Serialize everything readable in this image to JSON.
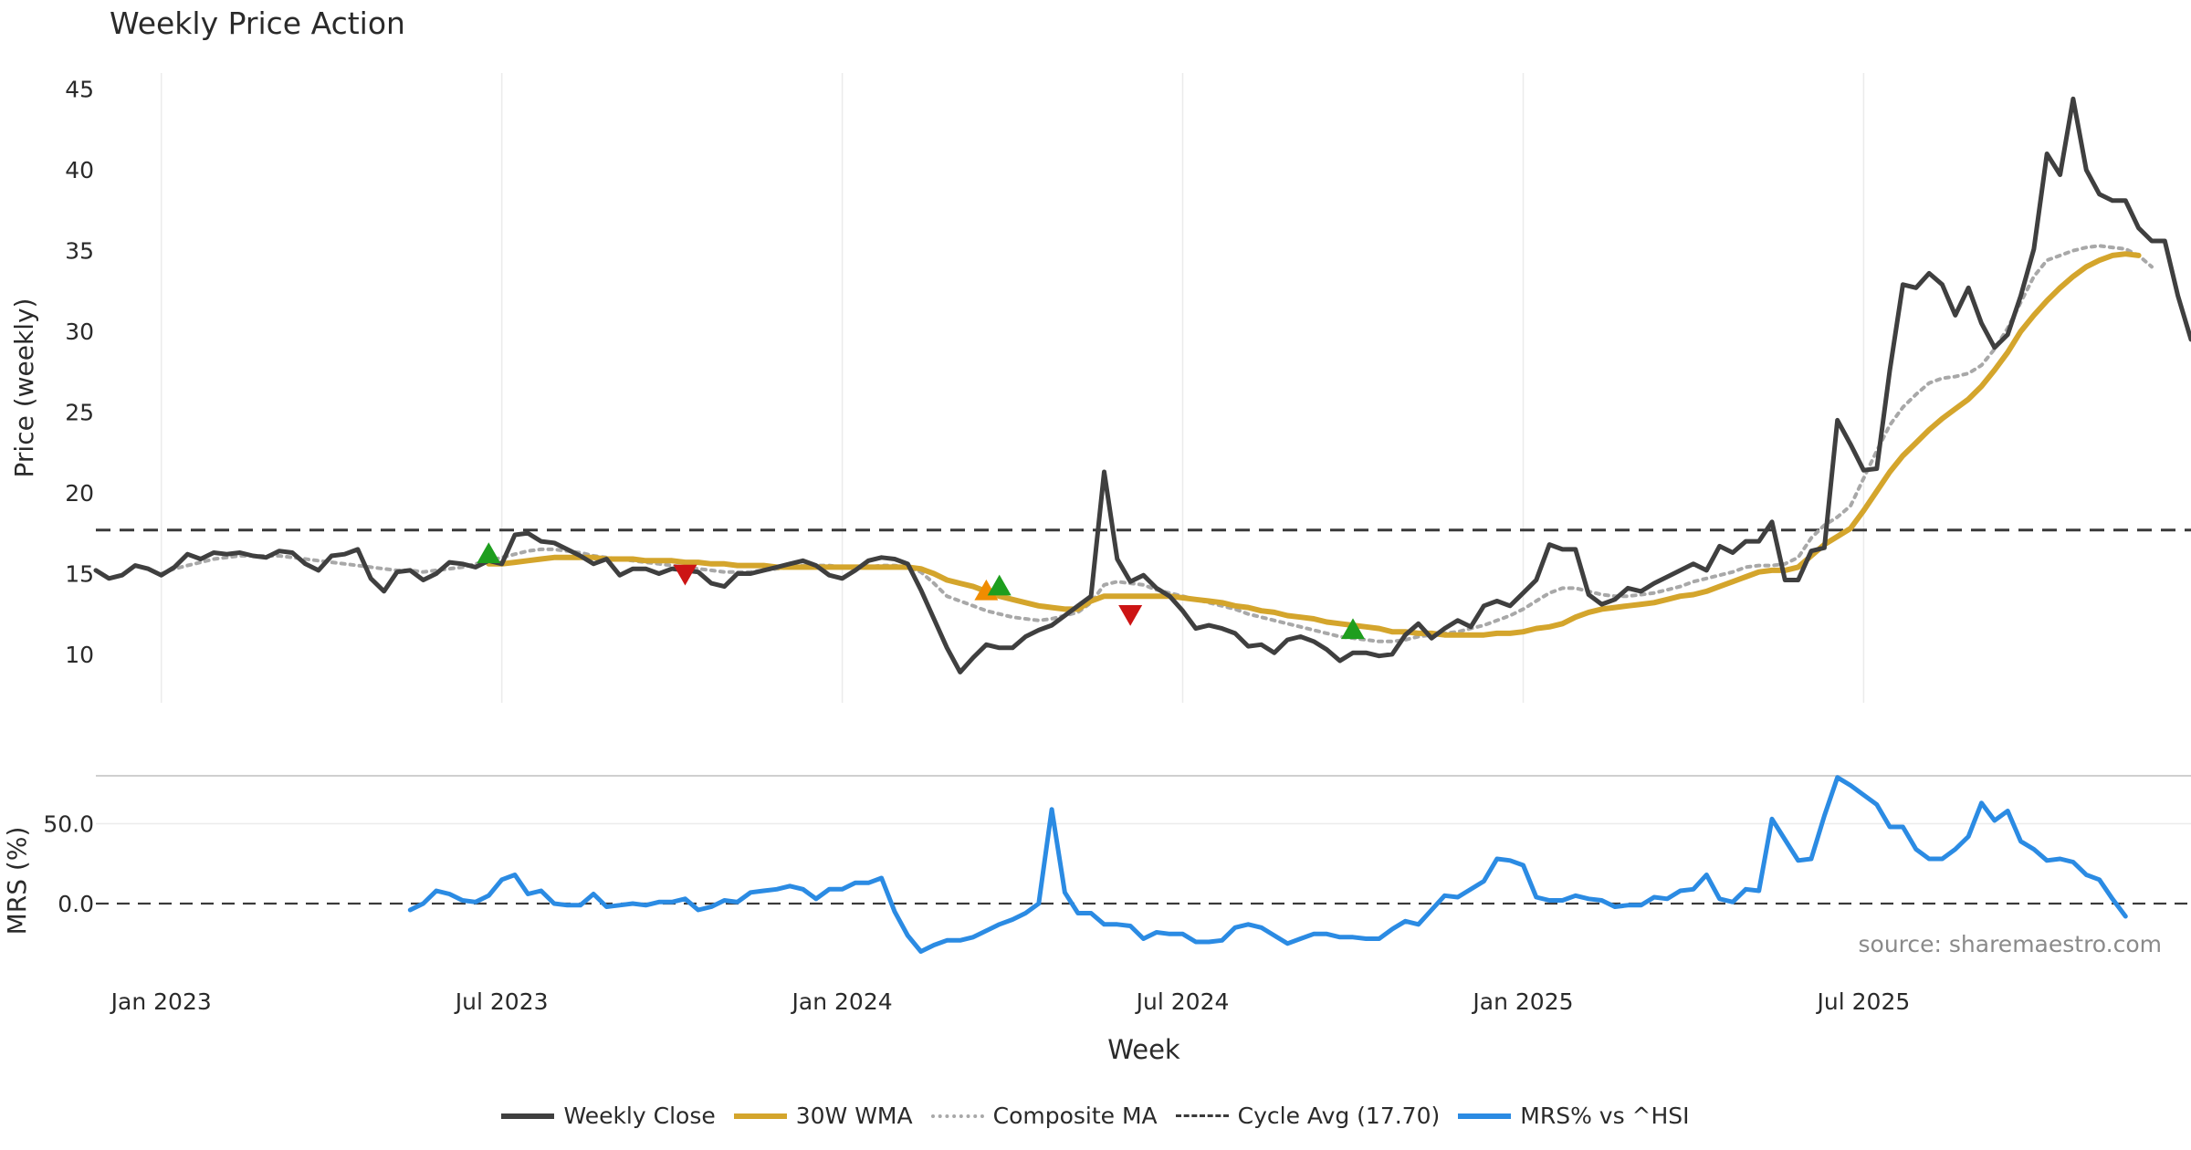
{
  "colors": {
    "close": "#3f3f3f",
    "wma": "#d4a52c",
    "composite": "#a8a8a8",
    "cycle": "#3a3a3a",
    "mrs": "#2b8be3",
    "buy": "#1e9e1e",
    "sell": "#cc1414",
    "warn": "#f08c00"
  },
  "chart_data": {
    "type": "line",
    "title": "Weekly Price Action",
    "xlabel": "Week",
    "x_ticks": [
      "Jan 2023",
      "Jul 2023",
      "Jan 2024",
      "Jul 2024",
      "Jan 2025",
      "Jul 2025"
    ],
    "source": "source: sharemaestro.com",
    "price_panel": {
      "ylabel": "Price (weekly)",
      "ylim": [
        7,
        46
      ],
      "yticks": [
        "10",
        "15",
        "20",
        "25",
        "30",
        "35",
        "40",
        "45"
      ],
      "cycle_avg": 17.7,
      "series": [
        {
          "name": "Weekly Close",
          "values": [
            15.2,
            14.7,
            14.9,
            15.5,
            15.3,
            14.9,
            15.4,
            16.2,
            15.9,
            16.3,
            16.2,
            16.3,
            16.1,
            16.0,
            16.4,
            16.3,
            15.6,
            15.2,
            16.1,
            16.2,
            16.5,
            14.7,
            13.9,
            15.1,
            15.2,
            14.6,
            15.0,
            15.7,
            15.6,
            15.4,
            15.8,
            15.6,
            17.4,
            17.5,
            17.0,
            16.9,
            16.5,
            16.1,
            15.6,
            15.9,
            14.9,
            15.3,
            15.3,
            15.0,
            15.3,
            15.2,
            15.1,
            14.4,
            14.2,
            15.0,
            15.0,
            15.2,
            15.4,
            15.6,
            15.8,
            15.5,
            14.9,
            14.7,
            15.2,
            15.8,
            16.0,
            15.9,
            15.6,
            14.0,
            12.2,
            10.4,
            8.9,
            9.8,
            10.6,
            10.4,
            10.4,
            11.1,
            11.5,
            11.8,
            12.4,
            13.0,
            13.6,
            21.3,
            15.9,
            14.5,
            14.9,
            14.1,
            13.6,
            12.7,
            11.6,
            11.8,
            11.6,
            11.3,
            10.5,
            10.6,
            10.1,
            10.9,
            11.1,
            10.8,
            10.3,
            9.6,
            10.1,
            10.1,
            9.9,
            10.0,
            11.2,
            11.9,
            11.0,
            11.6,
            12.1,
            11.7,
            13.0,
            13.3,
            13.0,
            13.8,
            14.6,
            16.8,
            16.5,
            16.5,
            13.7,
            13.1,
            13.4,
            14.1,
            13.9,
            14.4,
            14.8,
            15.2,
            15.6,
            15.2,
            16.7,
            16.3,
            17.0,
            17.0,
            18.2,
            14.6,
            14.6,
            16.4,
            16.6,
            24.5,
            23.0,
            21.4,
            21.5,
            27.6,
            32.9,
            32.7,
            33.6,
            32.9,
            31.0,
            32.7,
            30.5,
            29.0,
            29.8,
            32.2,
            35.1,
            41.0,
            39.7,
            44.4,
            40.0,
            38.5,
            38.1,
            38.1,
            36.4,
            35.6,
            35.6,
            32.2,
            29.5
          ]
        },
        {
          "name": "30W WMA",
          "values": [
            null,
            null,
            null,
            null,
            null,
            null,
            null,
            null,
            null,
            null,
            null,
            null,
            null,
            null,
            null,
            null,
            null,
            null,
            null,
            null,
            null,
            null,
            null,
            null,
            null,
            null,
            null,
            null,
            null,
            null,
            15.6,
            15.6,
            15.7,
            15.8,
            15.9,
            16.0,
            16.0,
            16.0,
            16.0,
            15.9,
            15.9,
            15.9,
            15.8,
            15.8,
            15.8,
            15.7,
            15.7,
            15.6,
            15.6,
            15.5,
            15.5,
            15.5,
            15.4,
            15.4,
            15.4,
            15.4,
            15.4,
            15.4,
            15.4,
            15.4,
            15.4,
            15.4,
            15.4,
            15.3,
            15.0,
            14.6,
            14.4,
            14.2,
            13.9,
            13.6,
            13.4,
            13.2,
            13.0,
            12.9,
            12.8,
            12.8,
            13.3,
            13.6,
            13.6,
            13.6,
            13.6,
            13.6,
            13.6,
            13.5,
            13.4,
            13.3,
            13.2,
            13.0,
            12.9,
            12.7,
            12.6,
            12.4,
            12.3,
            12.2,
            12.0,
            11.9,
            11.8,
            11.7,
            11.6,
            11.4,
            11.4,
            11.3,
            11.3,
            11.2,
            11.2,
            11.2,
            11.2,
            11.3,
            11.3,
            11.4,
            11.6,
            11.7,
            11.9,
            12.3,
            12.6,
            12.8,
            12.9,
            13.0,
            13.1,
            13.2,
            13.4,
            13.6,
            13.7,
            13.9,
            14.2,
            14.5,
            14.8,
            15.1,
            15.2,
            15.2,
            15.4,
            16.1,
            16.8,
            17.3,
            17.8,
            18.9,
            20.1,
            21.3,
            22.3,
            23.1,
            23.9,
            24.6,
            25.2,
            25.8,
            26.6,
            27.6,
            28.7,
            30.0,
            31.0,
            31.9,
            32.7,
            33.4,
            34.0,
            34.4,
            34.7,
            34.8,
            34.7
          ]
        },
        {
          "name": "Composite MA",
          "values": [
            null,
            null,
            null,
            null,
            null,
            15.0,
            15.3,
            15.5,
            15.7,
            15.9,
            16.0,
            16.1,
            16.1,
            16.1,
            16.1,
            16.0,
            15.9,
            15.8,
            15.7,
            15.6,
            15.5,
            15.4,
            15.3,
            15.2,
            15.2,
            15.1,
            15.2,
            15.3,
            15.4,
            15.6,
            15.8,
            16.0,
            16.2,
            16.4,
            16.5,
            16.5,
            16.4,
            16.3,
            16.1,
            16.0,
            15.9,
            15.8,
            15.7,
            15.6,
            15.5,
            15.4,
            15.3,
            15.2,
            15.1,
            15.1,
            15.1,
            15.2,
            15.3,
            15.4,
            15.5,
            15.5,
            15.5,
            15.4,
            15.4,
            15.4,
            15.5,
            15.5,
            15.4,
            15.1,
            14.4,
            13.6,
            13.3,
            13.0,
            12.7,
            12.5,
            12.3,
            12.2,
            12.1,
            12.2,
            12.4,
            12.6,
            13.2,
            14.3,
            14.5,
            14.4,
            14.3,
            14.0,
            13.8,
            13.6,
            13.4,
            13.2,
            13.0,
            12.8,
            12.5,
            12.3,
            12.1,
            11.9,
            11.7,
            11.5,
            11.3,
            11.1,
            11.0,
            10.9,
            10.8,
            10.8,
            10.9,
            11.1,
            11.2,
            11.3,
            11.4,
            11.6,
            11.8,
            12.1,
            12.4,
            12.8,
            13.3,
            13.8,
            14.1,
            14.1,
            13.9,
            13.7,
            13.6,
            13.6,
            13.7,
            13.8,
            14.0,
            14.2,
            14.5,
            14.7,
            14.9,
            15.1,
            15.4,
            15.5,
            15.5,
            15.6,
            16.0,
            17.2,
            18.0,
            18.5,
            19.2,
            20.9,
            22.6,
            24.2,
            25.3,
            26.1,
            26.8,
            27.1,
            27.2,
            27.4,
            27.9,
            28.9,
            30.2,
            31.8,
            33.4,
            34.4,
            34.7,
            35.0,
            35.2,
            35.3,
            35.2,
            35.1,
            34.7,
            34.0
          ]
        }
      ],
      "markers": [
        {
          "week": 30,
          "value": 16.2,
          "direction": "up",
          "kind": "buy"
        },
        {
          "week": 45,
          "value": 15.0,
          "direction": "down",
          "kind": "sell"
        },
        {
          "week": 68,
          "value": 13.9,
          "direction": "up",
          "kind": "warn"
        },
        {
          "week": 69,
          "value": 14.2,
          "direction": "up",
          "kind": "buy"
        },
        {
          "week": 79,
          "value": 12.5,
          "direction": "down",
          "kind": "sell"
        },
        {
          "week": 96,
          "value": 11.5,
          "direction": "up",
          "kind": "buy"
        }
      ]
    },
    "mrs_panel": {
      "ylabel": "MRS (%)",
      "ylim": [
        -40,
        80
      ],
      "yticks": [
        "0.0",
        "50.0"
      ],
      "series": [
        {
          "name": "MRS% vs ^HSI",
          "values": [
            null,
            null,
            null,
            null,
            null,
            null,
            null,
            null,
            null,
            null,
            null,
            null,
            null,
            null,
            null,
            null,
            null,
            null,
            null,
            null,
            null,
            null,
            null,
            null,
            -4,
            0,
            8,
            6,
            2,
            1,
            5,
            15,
            18,
            6,
            8,
            0,
            -1,
            -1,
            6,
            -2,
            -1,
            0,
            -1,
            1,
            1,
            3,
            -4,
            -2,
            2,
            1,
            7,
            8,
            9,
            11,
            9,
            3,
            9,
            9,
            13,
            13,
            16,
            -5,
            -20,
            -30,
            -26,
            -23,
            -23,
            -21,
            -17,
            -13,
            -10,
            -6,
            0,
            59,
            7,
            -6,
            -6,
            -13,
            -13,
            -14,
            -22,
            -18,
            -19,
            -19,
            -24,
            -24,
            -23,
            -15,
            -13,
            -15,
            -20,
            -25,
            -22,
            -19,
            -19,
            -21,
            -21,
            -22,
            -22,
            -16,
            -11,
            -13,
            -4,
            5,
            4,
            9,
            14,
            28,
            27,
            24,
            4,
            2,
            2,
            5,
            3,
            2,
            -2,
            -1,
            -1,
            4,
            3,
            8,
            9,
            18,
            3,
            1,
            9,
            8,
            53,
            40,
            27,
            28,
            55,
            79,
            74,
            68,
            62,
            48,
            48,
            34,
            28,
            28,
            34,
            42,
            63,
            52,
            58,
            39,
            34,
            27,
            28,
            26,
            18,
            15,
            3,
            -8
          ]
        }
      ]
    }
  }
}
